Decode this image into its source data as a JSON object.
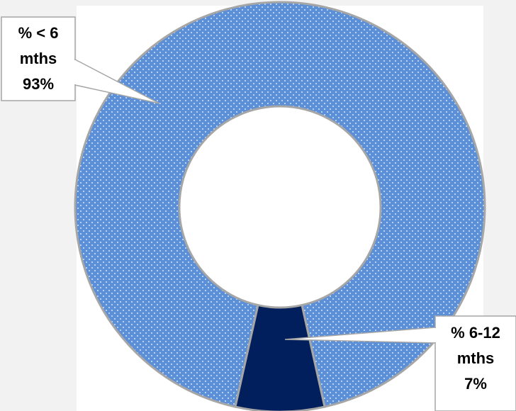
{
  "chart_data": {
    "type": "pie",
    "variant": "doughnut",
    "categories": [
      "% < 6 mths",
      "% 6-12 mths"
    ],
    "values": [
      93,
      7
    ],
    "unit": "%",
    "colors": [
      "#5b8fd8",
      "#001f5c"
    ],
    "pattern": [
      "dotted",
      "solid"
    ],
    "slice_outline_color": "#a6a6a6",
    "data_labels": [
      {
        "lines": [
          "% < 6",
          "mths",
          "93%"
        ]
      },
      {
        "lines": [
          "% 6-12",
          "mths",
          "7%"
        ]
      }
    ],
    "legend": "none",
    "title": ""
  }
}
